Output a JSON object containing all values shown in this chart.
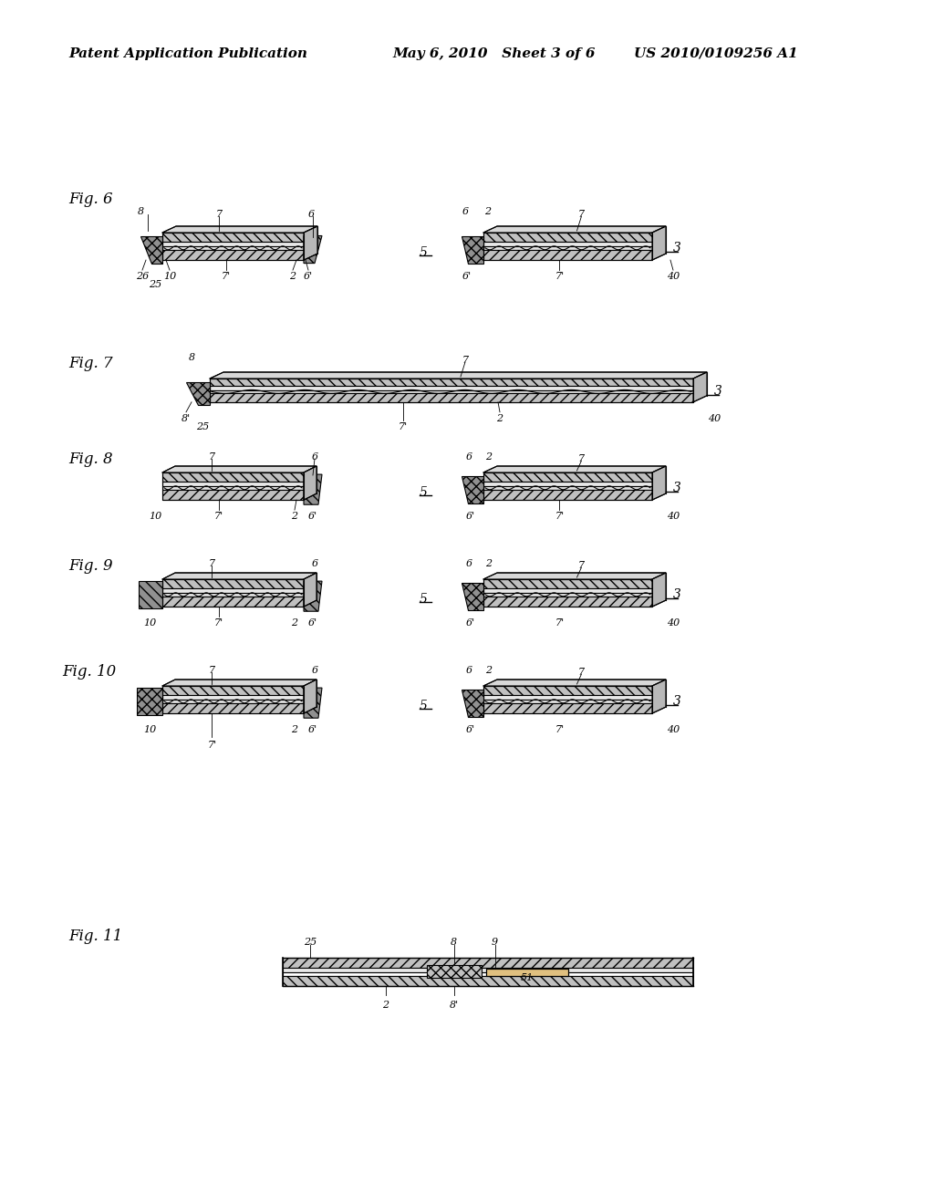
{
  "bg": "#ffffff",
  "header_left": "Patent Application Publication",
  "header_mid": "May 6, 2010   Sheet 3 of 6",
  "header_right": "US 2010/0109256 A1",
  "fig_labels": [
    "Fig. 6",
    "Fig. 7",
    "Fig. 8",
    "Fig. 9",
    "Fig. 10",
    "Fig. 11"
  ],
  "hatch_bottom": "///",
  "hatch_top": "\\\\\\",
  "hatch_clip": "xxx",
  "layer_color": "#c0c0c0",
  "clip_color": "#909090",
  "wave_color": "#333333",
  "line_color": "#000000"
}
